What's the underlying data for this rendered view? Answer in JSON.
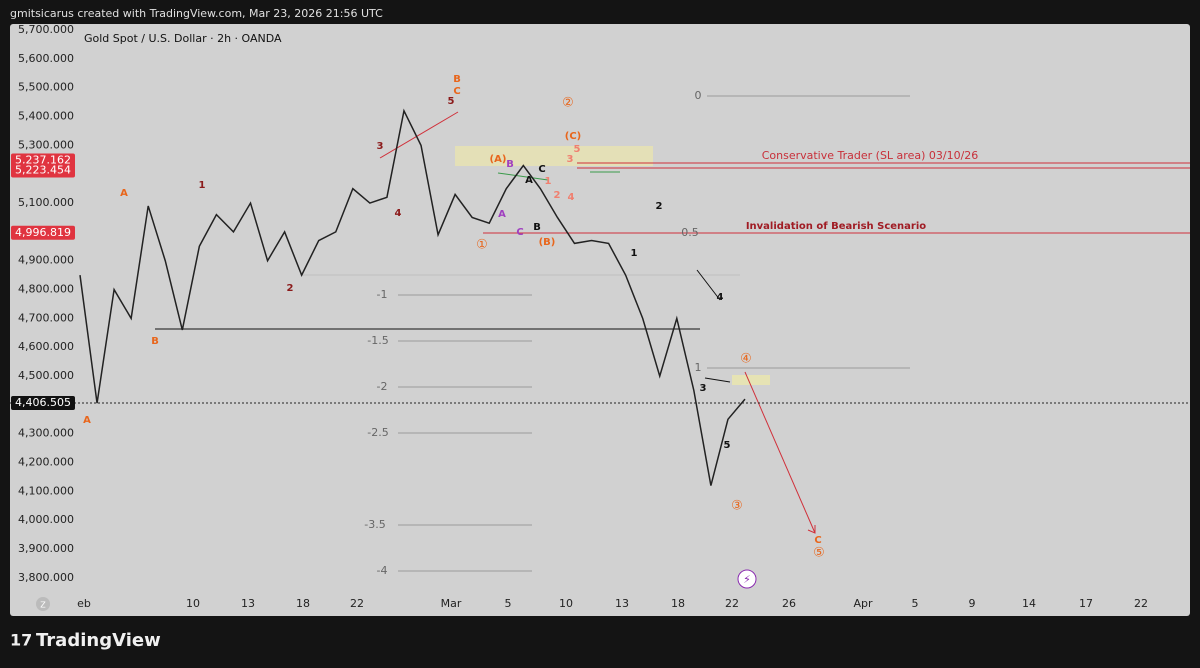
{
  "top_bar": "gmitsicarus created with TradingView.com, Mar 23, 2026 21:56 UTC",
  "brand": "TradingView",
  "chart_data": {
    "type": "line",
    "title": "Gold Spot / U.S. Dollar · 2h · OANDA",
    "color": "#222222",
    "values": [
      4850,
      4406,
      4800,
      4700,
      5090,
      4900,
      4660,
      4950,
      5060,
      5000,
      5100,
      4900,
      5000,
      4850,
      4970,
      5000,
      5150,
      5100,
      5120,
      5420,
      5300,
      4990,
      5130,
      5050,
      5030,
      5150,
      5230,
      5150,
      5050,
      4960,
      4970,
      4960,
      4850,
      4700,
      4500,
      4700,
      4450,
      4120,
      4350,
      4420
    ],
    "ylim": [
      3758,
      5721
    ],
    "yticks": [
      {
        "value": 5700,
        "label": "5,700.000"
      },
      {
        "value": 5600,
        "label": "5,600.000"
      },
      {
        "value": 5500,
        "label": "5,500.000"
      },
      {
        "value": 5400,
        "label": "5,400.000"
      },
      {
        "value": 5300,
        "label": "5,300.000"
      },
      {
        "value": 5100,
        "label": "5,100.000"
      },
      {
        "value": 4900,
        "label": "4,900.000"
      },
      {
        "value": 4800,
        "label": "4,800.000"
      },
      {
        "value": 4700,
        "label": "4,700.000"
      },
      {
        "value": 4600,
        "label": "4,600.000"
      },
      {
        "value": 4500,
        "label": "4,500.000"
      },
      {
        "value": 4300,
        "label": "4,300.000"
      },
      {
        "value": 4200,
        "label": "4,200.000"
      },
      {
        "value": 4100,
        "label": "4,100.000"
      },
      {
        "value": 4000,
        "label": "4,000.000"
      },
      {
        "value": 3900,
        "label": "3,900.000"
      },
      {
        "value": 3800,
        "label": "3,800.000"
      }
    ],
    "price_labels": [
      {
        "value": 5237.162,
        "label": "5,237.162"
      },
      {
        "value": 5223.454,
        "label": "5,223.454"
      },
      {
        "value": 4996.819,
        "label": "4,996.819"
      },
      {
        "value": 4406.505,
        "label": "4,406.505"
      }
    ],
    "x_labels": [
      "eb",
      "10",
      "13",
      "18",
      "22",
      "Mar",
      "5",
      "10",
      "13",
      "18",
      "22",
      "26",
      "Apr",
      "5",
      "9",
      "14",
      "17",
      "22"
    ],
    "fib_levels": [
      0,
      0.5,
      1,
      -1,
      -1.5,
      -2,
      -2.5,
      -3.5,
      -4
    ],
    "annotations": [
      "A",
      "1",
      "B",
      "A",
      "2",
      "3",
      "4",
      "5",
      "B",
      "C",
      "①",
      "②",
      "(A)",
      "B",
      "A",
      "C",
      "1",
      "A",
      "C",
      "B",
      "2",
      "4",
      "3",
      "5",
      "(C)",
      "(B)",
      "1",
      "2",
      "4",
      "3",
      "5",
      "③",
      "④",
      "C",
      "⑤",
      "Conservative Trader (SL area) 03/10/26",
      "Invalidation of Bearish Scenario"
    ]
  }
}
